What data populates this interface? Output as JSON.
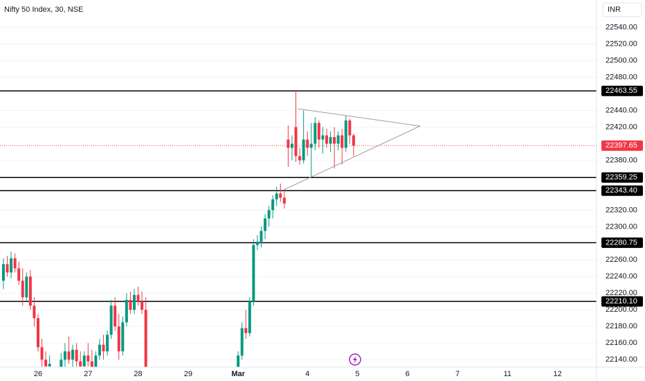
{
  "chart_data": {
    "type": "candlestick",
    "title": "Nifty 50 Index, 30, NSE",
    "currency": "INR",
    "up_color": "#089981",
    "down_color": "#f23645",
    "level_color": "#000000",
    "grid": true,
    "ylim": [
      22131,
      22573
    ],
    "yticks": [
      {
        "value": 22540,
        "label": "22540.00"
      },
      {
        "value": 22520,
        "label": "22520.00"
      },
      {
        "value": 22500,
        "label": "22500.00"
      },
      {
        "value": 22480,
        "label": "22480.00"
      },
      {
        "value": 22440,
        "label": "22440.00"
      },
      {
        "value": 22420,
        "label": "22420.00"
      },
      {
        "value": 22380,
        "label": "22380.00"
      },
      {
        "value": 22320,
        "label": "22320.00"
      },
      {
        "value": 22300,
        "label": "22300.00"
      },
      {
        "value": 22260,
        "label": "22260.00"
      },
      {
        "value": 22240,
        "label": "22240.00"
      },
      {
        "value": 22220,
        "label": "22220.00"
      },
      {
        "value": 22200,
        "label": "22200.00"
      },
      {
        "value": 22180,
        "label": "22180.00"
      },
      {
        "value": 22160,
        "label": "22160.00"
      },
      {
        "value": 22140,
        "label": "22140.00"
      }
    ],
    "levels": [
      22463.55,
      22359.25,
      {
        "value": 22343.4,
        "label": "22343.40"
      },
      22280.75,
      {
        "value": 22210.1,
        "label": "22210.10"
      }
    ],
    "last_price": 22397.65,
    "categories": [
      null,
      null,
      null,
      null,
      null,
      null,
      null,
      null,
      null,
      null,
      "26",
      null,
      null,
      null,
      null,
      null,
      null,
      null,
      null,
      null,
      null,
      null,
      null,
      "27",
      null,
      null,
      null,
      null,
      null,
      null,
      null,
      null,
      null,
      null,
      null,
      null,
      "28",
      null,
      null,
      null,
      null,
      null,
      null,
      null,
      null,
      null,
      null,
      null,
      null,
      "29",
      null,
      null,
      null,
      null,
      null,
      null,
      null,
      null,
      null,
      null,
      null,
      null,
      "Mar",
      null,
      null,
      null,
      null,
      null,
      null,
      null,
      null,
      null,
      null,
      null,
      null,
      null,
      null,
      null,
      null,
      null,
      "4",
      null,
      null,
      null,
      null,
      null,
      null,
      null,
      null,
      null,
      null,
      null,
      null,
      "5",
      null,
      null,
      null,
      null,
      null,
      null,
      null,
      null,
      null,
      null,
      null,
      null,
      "6",
      null,
      null,
      null,
      null,
      null,
      null,
      null,
      null,
      null,
      null,
      null,
      null,
      "7",
      null,
      null,
      null,
      null,
      null,
      null,
      null,
      null,
      null,
      null,
      null,
      null,
      "11",
      null,
      null,
      null,
      null,
      null,
      null,
      null,
      null,
      null,
      null,
      null,
      null,
      "12"
    ],
    "open": [
      null,
      22235,
      22255,
      22245,
      22262,
      22250,
      22235,
      22215,
      22240,
      22205,
      22190,
      22155,
      22140,
      22132,
      null,
      null,
      22125,
      22140,
      22150,
      22140,
      22152,
      22138,
      22132,
      22145,
      22138,
      22130,
      22145,
      22158,
      22150,
      22170,
      22205,
      22180,
      22150,
      22185,
      22212,
      22200,
      22218,
      22210,
      22200,
      null,
      null,
      null,
      null,
      null,
      null,
      null,
      null,
      null,
      null,
      null,
      null,
      null,
      null,
      null,
      null,
      null,
      null,
      null,
      null,
      null,
      null,
      null,
      22125,
      22145,
      22178,
      22172,
      22210,
      22278,
      22282,
      22295,
      22310,
      22320,
      22333,
      22340,
      22335,
      22405,
      22395,
      22420,
      22385,
      22380,
      22405,
      22395,
      22400,
      22425,
      22405,
      22410,
      22400,
      22408,
      22400,
      22410,
      22395,
      22428,
      22410,
      null,
      null,
      null,
      null,
      null,
      null,
      null,
      null,
      null,
      null,
      null,
      null,
      null,
      null,
      null,
      null,
      null,
      null,
      null,
      null,
      null,
      null,
      null,
      null,
      null,
      null,
      null,
      null,
      null,
      null,
      null,
      null,
      null,
      null,
      null,
      null,
      null,
      null,
      null,
      null,
      null,
      null,
      null,
      null,
      null,
      null,
      null,
      null,
      null,
      null,
      null,
      null,
      null
    ],
    "high": [
      null,
      22262,
      22265,
      22270,
      22268,
      22258,
      22250,
      22245,
      22248,
      22215,
      22195,
      22165,
      22150,
      22145,
      null,
      null,
      22148,
      22160,
      22168,
      22158,
      22160,
      22150,
      22150,
      22160,
      22152,
      22150,
      22165,
      22170,
      22175,
      22212,
      22215,
      22195,
      22192,
      22220,
      22222,
      22225,
      22228,
      22222,
      22215,
      null,
      null,
      null,
      null,
      null,
      null,
      null,
      null,
      null,
      null,
      null,
      null,
      null,
      null,
      null,
      null,
      null,
      null,
      null,
      null,
      null,
      null,
      null,
      22150,
      22185,
      22200,
      22215,
      22285,
      22290,
      22300,
      22315,
      22325,
      22338,
      22348,
      22352,
      22345,
      22422,
      22410,
      22463.55,
      22395,
      22440,
      22415,
      22425,
      22432,
      22428,
      22420,
      22418,
      22415,
      22420,
      22415,
      22418,
      22434,
      22430,
      22412,
      null,
      null,
      null,
      null,
      null,
      null,
      null,
      null,
      null,
      null,
      null,
      null,
      null,
      null,
      null,
      null,
      null,
      null,
      null,
      null,
      null,
      null,
      null,
      null,
      null,
      null,
      null,
      null,
      null,
      null,
      null,
      null,
      null,
      null,
      null,
      null,
      null,
      null,
      null,
      null,
      null,
      null,
      null,
      null,
      null,
      null,
      null,
      null,
      null,
      null,
      null,
      null,
      null
    ],
    "low": [
      null,
      22225,
      22240,
      22238,
      22245,
      22230,
      22205,
      22210,
      22200,
      22180,
      22150,
      22131,
      22120,
      22120,
      null,
      null,
      22120,
      22130,
      22135,
      22130,
      22132,
      22125,
      22120,
      22132,
      22125,
      22125,
      22140,
      22140,
      22145,
      22165,
      22175,
      22140,
      22145,
      22180,
      22195,
      22195,
      22205,
      22195,
      22120,
      null,
      null,
      null,
      null,
      null,
      null,
      null,
      null,
      null,
      null,
      null,
      null,
      null,
      null,
      null,
      null,
      null,
      null,
      null,
      null,
      null,
      null,
      null,
      22120,
      22140,
      22165,
      22168,
      22205,
      22272,
      22275,
      22285,
      22300,
      22310,
      22325,
      22330,
      22322,
      22372,
      22380,
      22378,
      22375,
      22376,
      22385,
      22359.25,
      22392,
      22395,
      22388,
      22395,
      22390,
      22370,
      22392,
      22375,
      22390,
      22400,
      22385,
      null,
      null,
      null,
      null,
      null,
      null,
      null,
      null,
      null,
      null,
      null,
      null,
      null,
      null,
      null,
      null,
      null,
      null,
      null,
      null,
      null,
      null,
      null,
      null,
      null,
      null,
      null,
      null,
      null,
      null,
      null,
      null,
      null,
      null,
      null,
      null,
      null,
      null,
      null,
      null,
      null,
      null,
      null,
      null,
      null,
      null,
      null,
      null,
      null,
      null,
      null,
      null,
      null
    ],
    "close": [
      null,
      22255,
      22245,
      22262,
      22250,
      22235,
      22215,
      22240,
      22205,
      22190,
      22155,
      22140,
      22132,
      22135,
      null,
      null,
      22140,
      22150,
      22140,
      22152,
      22138,
      22132,
      22145,
      22138,
      22130,
      22145,
      22158,
      22150,
      22170,
      22205,
      22180,
      22150,
      22185,
      22212,
      22200,
      22218,
      22210,
      22200,
      22125,
      null,
      null,
      null,
      null,
      null,
      null,
      null,
      null,
      null,
      null,
      null,
      null,
      null,
      null,
      null,
      null,
      null,
      null,
      null,
      null,
      null,
      null,
      null,
      22145,
      22178,
      22172,
      22210,
      22278,
      22282,
      22295,
      22310,
      22320,
      22333,
      22340,
      22335,
      22328,
      22395,
      22400,
      22385,
      22380,
      22405,
      22395,
      22400,
      22425,
      22405,
      22410,
      22400,
      22408,
      22400,
      22410,
      22395,
      22428,
      22410,
      22397.65,
      null,
      null,
      null,
      null,
      null,
      null,
      null,
      null,
      null,
      null,
      null,
      null,
      null,
      null,
      null,
      null,
      null,
      null,
      null,
      null,
      null,
      null,
      null,
      null,
      null,
      null,
      null,
      null,
      null,
      null,
      null,
      null,
      null,
      null,
      null,
      null,
      null,
      null,
      null,
      null,
      null,
      null,
      null,
      null,
      null,
      null,
      null,
      null,
      null,
      null,
      null,
      null,
      null
    ]
  }
}
